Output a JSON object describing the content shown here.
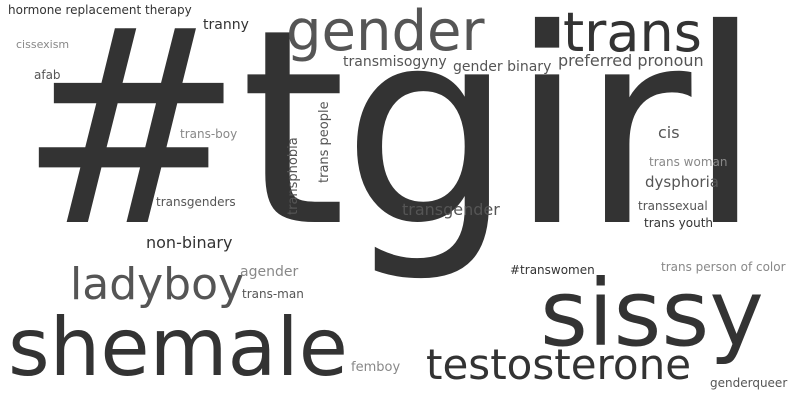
{
  "word_cloud": {
    "colors": {
      "dark": "#333333",
      "mid": "#555555",
      "light": "#888888",
      "background": "#ffffff"
    },
    "words": [
      {
        "text": "#tgirl"
      },
      {
        "text": "sissy"
      },
      {
        "text": "shemale"
      },
      {
        "text": "gender"
      },
      {
        "text": "trans"
      },
      {
        "text": "testosterone"
      },
      {
        "text": "ladyboy"
      },
      {
        "text": "transgender"
      },
      {
        "text": "non-binary"
      },
      {
        "text": "preferred pronoun"
      },
      {
        "text": "gender binary"
      },
      {
        "text": "transmisogyny"
      },
      {
        "text": "hormone replacement therapy"
      },
      {
        "text": "tranny"
      },
      {
        "text": "cissexism"
      },
      {
        "text": "afab"
      },
      {
        "text": "trans-boy"
      },
      {
        "text": "transgenders"
      },
      {
        "text": "transphobia"
      },
      {
        "text": "trans people"
      },
      {
        "text": "cis"
      },
      {
        "text": "trans woman"
      },
      {
        "text": "dysphoria"
      },
      {
        "text": "transsexual"
      },
      {
        "text": "trans youth"
      },
      {
        "text": "agender"
      },
      {
        "text": "trans-man"
      },
      {
        "text": "#transwomen"
      },
      {
        "text": "trans person of color"
      },
      {
        "text": "femboy"
      },
      {
        "text": "genderqueer"
      }
    ]
  }
}
